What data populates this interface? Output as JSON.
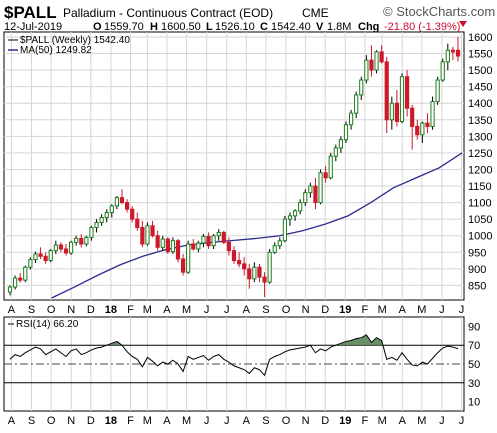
{
  "header": {
    "symbol": "$PALL",
    "name": "Palladium - Continuous Contract (EOD)",
    "exchange": "CME",
    "watermark": "© StockCharts.com",
    "date": "12-Jul-2019",
    "open_label": "O",
    "open": "1559.70",
    "high_label": "H",
    "high": "1600.50",
    "low_label": "L",
    "low": "1526.10",
    "close_label": "C",
    "close": "1542.40",
    "volume_label": "V",
    "volume": "1.8M",
    "change_label": "Chg",
    "change": "-21.80 (-1.39%)",
    "change_icon": "triangle-down-icon"
  },
  "colors": {
    "up_candle": "#1e7d1e",
    "down_candle": "#cc1a2a",
    "moving_average": "#2b2b8f",
    "rsi_line": "#000000",
    "rsi_overbought_fill": "#4f7f4f",
    "grid": "#d6d6d6"
  },
  "chart_data": [
    {
      "type": "candlestick",
      "legend": [
        "$PALL (Weekly) 1542.40",
        "MA(50) 1249.82"
      ],
      "y_ticks": [
        850,
        900,
        950,
        1000,
        1050,
        1100,
        1150,
        1200,
        1250,
        1300,
        1350,
        1400,
        1450,
        1500,
        1550,
        1600
      ],
      "ylim": [
        806,
        1615
      ],
      "x_tick_labels": [
        "A",
        "S",
        "O",
        "N",
        "D",
        "18",
        "F",
        "M",
        "A",
        "M",
        "J",
        "J",
        "A",
        "S",
        "O",
        "N",
        "D",
        "19",
        "F",
        "M",
        "A",
        "M",
        "J",
        "J"
      ],
      "x_tick_positions": [
        1.2,
        5.6,
        9.9,
        14.3,
        18.6,
        23.0,
        27.3,
        31.0,
        35.3,
        39.6,
        44.0,
        48.4,
        52.7,
        57.0,
        61.4,
        65.7,
        70.0,
        74.4,
        78.7,
        82.5,
        86.9,
        91.2,
        95.6,
        99.9
      ],
      "bold_tick_labels": [
        "18",
        "19"
      ],
      "series": [
        {
          "name": "$PALL (Weekly)",
          "ohlc": [
            [
              830,
              850,
              820,
              845
            ],
            [
              845,
              880,
              838,
              872
            ],
            [
              872,
              888,
              858,
              866
            ],
            [
              866,
              910,
              860,
              905
            ],
            [
              905,
              935,
              898,
              928
            ],
            [
              928,
              952,
              918,
              945
            ],
            [
              945,
              965,
              930,
              938
            ],
            [
              938,
              950,
              915,
              925
            ],
            [
              925,
              960,
              920,
              955
            ],
            [
              955,
              985,
              945,
              972
            ],
            [
              972,
              980,
              950,
              960
            ],
            [
              960,
              975,
              940,
              948
            ],
            [
              948,
              985,
              942,
              980
            ],
            [
              980,
              1000,
              970,
              992
            ],
            [
              992,
              1005,
              965,
              975
            ],
            [
              975,
              1000,
              968,
              995
            ],
            [
              995,
              1030,
              985,
              1025
            ],
            [
              1025,
              1050,
              1010,
              1040
            ],
            [
              1040,
              1065,
              1030,
              1055
            ],
            [
              1055,
              1080,
              1040,
              1070
            ],
            [
              1070,
              1095,
              1055,
              1090
            ],
            [
              1090,
              1120,
              1080,
              1115
            ],
            [
              1115,
              1140,
              1095,
              1100
            ],
            [
              1100,
              1110,
              1070,
              1080
            ],
            [
              1080,
              1090,
              1040,
              1050
            ],
            [
              1050,
              1070,
              1015,
              1025
            ],
            [
              1025,
              1045,
              965,
              975
            ],
            [
              975,
              1040,
              970,
              1030
            ],
            [
              1030,
              1045,
              995,
              1000
            ],
            [
              1000,
              1015,
              955,
              965
            ],
            [
              965,
              1000,
              955,
              990
            ],
            [
              990,
              995,
              945,
              952
            ],
            [
              952,
              995,
              945,
              985
            ],
            [
              985,
              990,
              920,
              930
            ],
            [
              930,
              945,
              880,
              890
            ],
            [
              890,
              985,
              885,
              975
            ],
            [
              975,
              990,
              955,
              960
            ],
            [
              960,
              985,
              950,
              978
            ],
            [
              978,
              1005,
              965,
              998
            ],
            [
              998,
              1010,
              960,
              970
            ],
            [
              970,
              1005,
              960,
              1000
            ],
            [
              1000,
              1020,
              985,
              1010
            ],
            [
              1010,
              1015,
              975,
              980
            ],
            [
              980,
              995,
              940,
              955
            ],
            [
              955,
              968,
              915,
              925
            ],
            [
              925,
              950,
              905,
              915
            ],
            [
              915,
              935,
              880,
              900
            ],
            [
              900,
              915,
              840,
              870
            ],
            [
              870,
              920,
              860,
              905
            ],
            [
              905,
              915,
              860,
              875
            ],
            [
              875,
              890,
              815,
              860
            ],
            [
              860,
              960,
              855,
              950
            ],
            [
              950,
              980,
              945,
              970
            ],
            [
              970,
              995,
              960,
              985
            ],
            [
              985,
              1060,
              980,
              1050
            ],
            [
              1050,
              1070,
              1030,
              1060
            ],
            [
              1060,
              1080,
              1045,
              1075
            ],
            [
              1075,
              1110,
              1065,
              1100
            ],
            [
              1100,
              1140,
              1090,
              1130
            ],
            [
              1130,
              1160,
              1115,
              1150
            ],
            [
              1150,
              1175,
              1080,
              1100
            ],
            [
              1100,
              1200,
              1095,
              1190
            ],
            [
              1190,
              1210,
              1160,
              1175
            ],
            [
              1175,
              1250,
              1170,
              1240
            ],
            [
              1240,
              1275,
              1225,
              1265
            ],
            [
              1265,
              1300,
              1250,
              1290
            ],
            [
              1290,
              1345,
              1280,
              1335
            ],
            [
              1335,
              1380,
              1320,
              1370
            ],
            [
              1370,
              1435,
              1355,
              1425
            ],
            [
              1425,
              1480,
              1410,
              1470
            ],
            [
              1470,
              1545,
              1460,
              1530
            ],
            [
              1530,
              1575,
              1480,
              1500
            ],
            [
              1500,
              1560,
              1490,
              1555
            ],
            [
              1555,
              1575,
              1520,
              1525
            ],
            [
              1525,
              1540,
              1310,
              1350
            ],
            [
              1350,
              1420,
              1320,
              1400
            ],
            [
              1400,
              1440,
              1330,
              1345
            ],
            [
              1345,
              1490,
              1340,
              1480
            ],
            [
              1480,
              1500,
              1360,
              1385
            ],
            [
              1385,
              1395,
              1260,
              1330
            ],
            [
              1330,
              1350,
              1290,
              1305
            ],
            [
              1305,
              1345,
              1280,
              1340
            ],
            [
              1340,
              1370,
              1310,
              1330
            ],
            [
              1330,
              1420,
              1320,
              1405
            ],
            [
              1405,
              1480,
              1395,
              1470
            ],
            [
              1470,
              1535,
              1465,
              1525
            ],
            [
              1525,
              1580,
              1500,
              1560
            ],
            [
              1560,
              1570,
              1530,
              1555
            ],
            [
              1559.7,
              1600.5,
              1526.1,
              1542.4
            ]
          ]
        },
        {
          "name": "MA(50)",
          "x": [
            10,
            15,
            20,
            25,
            30,
            35,
            40,
            45,
            50,
            55,
            60,
            65,
            70,
            75,
            80,
            85,
            90,
            95,
            100
          ],
          "values": [
            812,
            845,
            880,
            912,
            938,
            958,
            972,
            980,
            986,
            992,
            1000,
            1015,
            1035,
            1060,
            1100,
            1145,
            1175,
            1205,
            1250
          ]
        }
      ]
    },
    {
      "type": "line",
      "title": "RSI(14) 66.20",
      "y_ticks": [
        10,
        30,
        50,
        70,
        90
      ],
      "ylim": [
        0,
        100
      ],
      "reference_lines": [
        30,
        50,
        70
      ],
      "series": [
        {
          "name": "RSI(14)",
          "values": [
            55,
            60,
            58,
            62,
            65,
            68,
            66,
            60,
            63,
            66,
            62,
            58,
            64,
            66,
            60,
            62,
            65,
            67,
            68,
            70,
            72,
            74,
            70,
            63,
            58,
            55,
            47,
            57,
            53,
            48,
            52,
            50,
            54,
            50,
            42,
            58,
            55,
            57,
            59,
            54,
            58,
            60,
            55,
            52,
            48,
            46,
            44,
            40,
            46,
            44,
            38,
            55,
            58,
            60,
            63,
            65,
            66,
            67,
            68,
            70,
            62,
            66,
            64,
            68,
            70,
            72,
            74,
            75,
            77,
            78,
            81,
            73,
            78,
            75,
            55,
            57,
            54,
            62,
            55,
            49,
            48,
            52,
            50,
            56,
            62,
            67,
            69,
            68,
            66.2
          ]
        }
      ]
    }
  ]
}
